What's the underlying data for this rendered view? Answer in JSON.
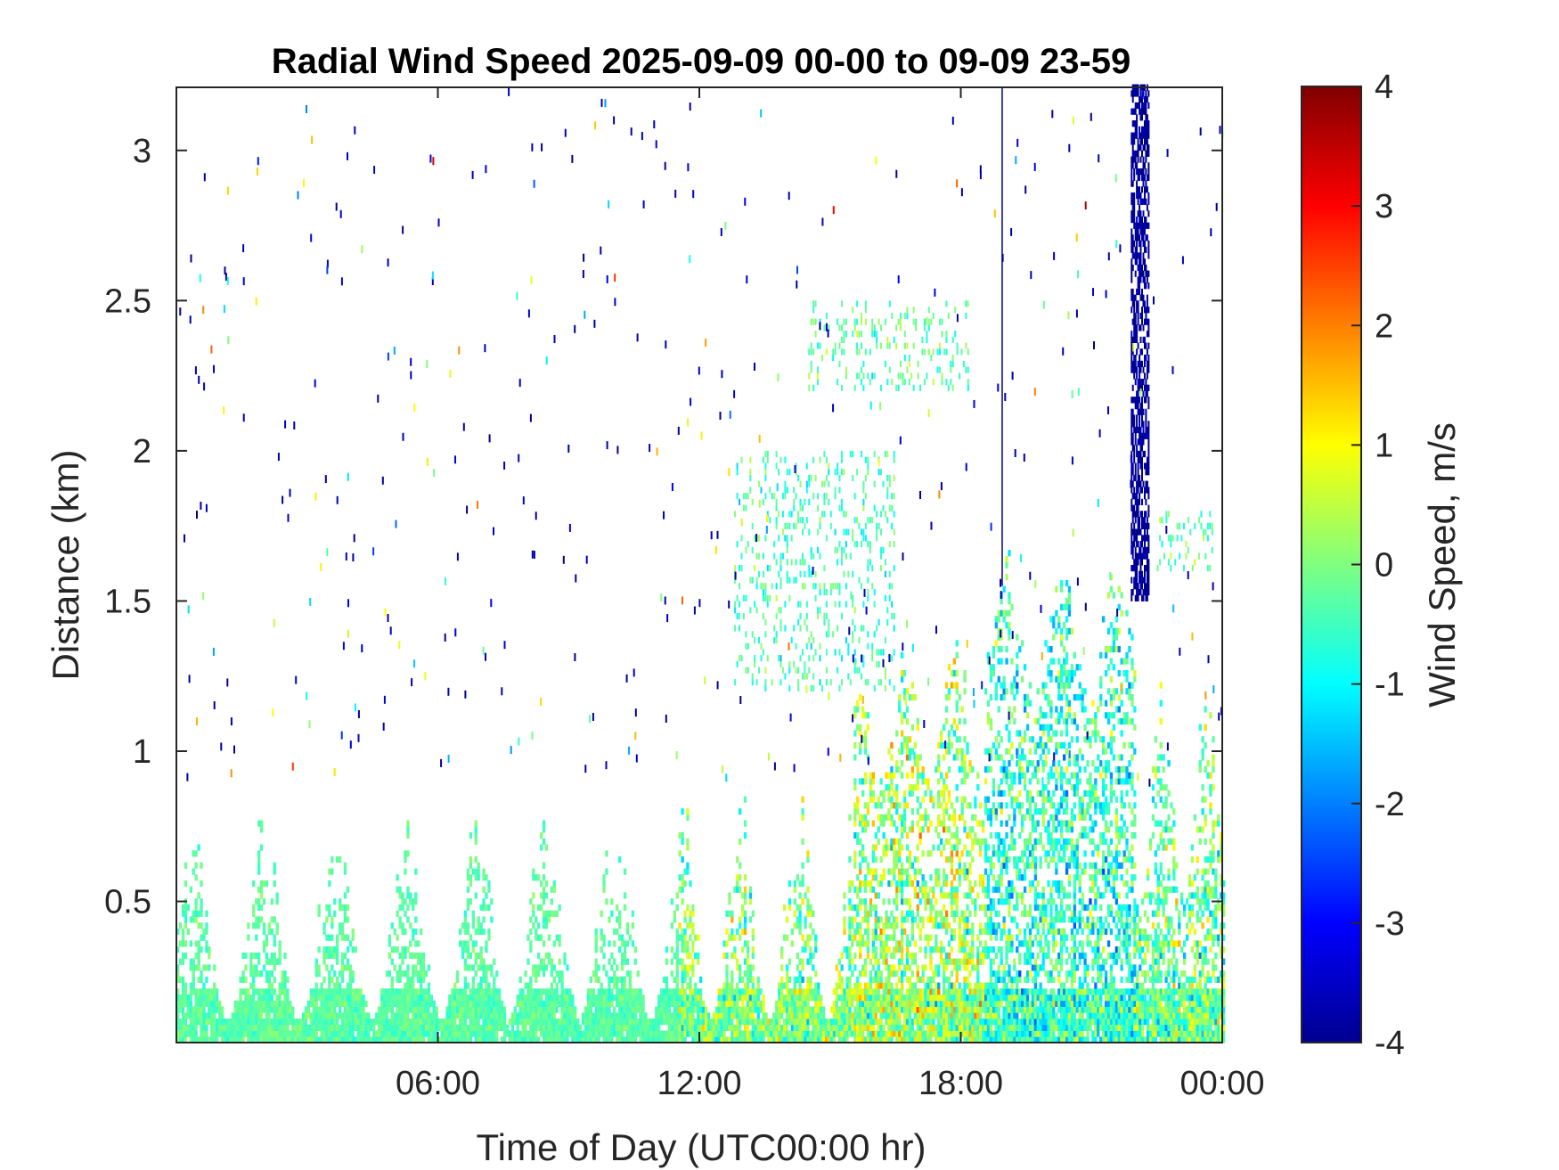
{
  "chart_data": {
    "type": "heatmap",
    "title": "Radial Wind Speed 2025-09-09 00-00 to 09-09 23-59",
    "xlabel": "Time of Day (UTC00:00 hr)",
    "ylabel": "Distance (km)",
    "colorbar_label": "Wind Speed, m/s",
    "colormap": "jet",
    "xlim_hours": [
      0,
      24
    ],
    "ylim_km": [
      0.03,
      3.21
    ],
    "clim": [
      -4,
      4
    ],
    "x_ticks": [
      {
        "value": 6,
        "label": "06:00"
      },
      {
        "value": 12,
        "label": "12:00"
      },
      {
        "value": 18,
        "label": "18:00"
      },
      {
        "value": 24,
        "label": "00:00"
      }
    ],
    "y_ticks": [
      {
        "value": 0.5,
        "label": "0.5"
      },
      {
        "value": 1,
        "label": "1"
      },
      {
        "value": 1.5,
        "label": "1.5"
      },
      {
        "value": 2,
        "label": "2"
      },
      {
        "value": 2.5,
        "label": "2.5"
      },
      {
        "value": 3,
        "label": "3"
      }
    ],
    "colorbar_ticks": [
      {
        "value": 4,
        "label": "4"
      },
      {
        "value": 3,
        "label": "3"
      },
      {
        "value": 2,
        "label": "2"
      },
      {
        "value": 1,
        "label": "1"
      },
      {
        "value": 0,
        "label": "0"
      },
      {
        "value": -1,
        "label": "-1"
      },
      {
        "value": -2,
        "label": "-2"
      },
      {
        "value": -3,
        "label": "-3"
      },
      {
        "value": -4,
        "label": "-4"
      }
    ],
    "data_regions": [
      {
        "hours": [
          0,
          11.5
        ],
        "max_range_km": [
          0.1,
          0.8
        ],
        "mean_speed": -0.3,
        "spread": 0.5
      },
      {
        "hours": [
          11.5,
          15.5
        ],
        "max_range_km": [
          0.1,
          0.9
        ],
        "mean_speed": 0.0,
        "spread": 1.5
      },
      {
        "hours": [
          15.5,
          18.5
        ],
        "max_range_km": [
          0.9,
          1.4
        ],
        "mean_speed": 0.2,
        "spread": 1.8
      },
      {
        "hours": [
          18.5,
          22
        ],
        "max_range_km": [
          1.2,
          1.7
        ],
        "mean_speed": -0.6,
        "spread": 1.6
      },
      {
        "hours": [
          22,
          24
        ],
        "max_range_km": [
          0.5,
          1.3
        ],
        "mean_speed": -0.2,
        "spread": 1.6
      }
    ],
    "features": [
      {
        "type": "cloud_layer",
        "hours": [
          21.9,
          22.3
        ],
        "range_km": [
          1.5,
          3.21
        ],
        "mean_speed": -3.8
      },
      {
        "type": "vertical_line",
        "hours": 18.95,
        "range_km": [
          1.55,
          3.21
        ],
        "mean_speed": -4
      },
      {
        "type": "sparse_patch",
        "hours": [
          12.8,
          16.5
        ],
        "range_km": [
          1.2,
          2.0
        ],
        "mean_speed": -0.5
      },
      {
        "type": "sparse_patch",
        "hours": [
          14.5,
          18.2
        ],
        "range_km": [
          2.2,
          2.5
        ],
        "mean_speed": -0.3
      },
      {
        "type": "sparse_patch",
        "hours": [
          22.5,
          23.8
        ],
        "range_km": [
          1.6,
          1.8
        ],
        "mean_speed": -0.3
      }
    ]
  }
}
